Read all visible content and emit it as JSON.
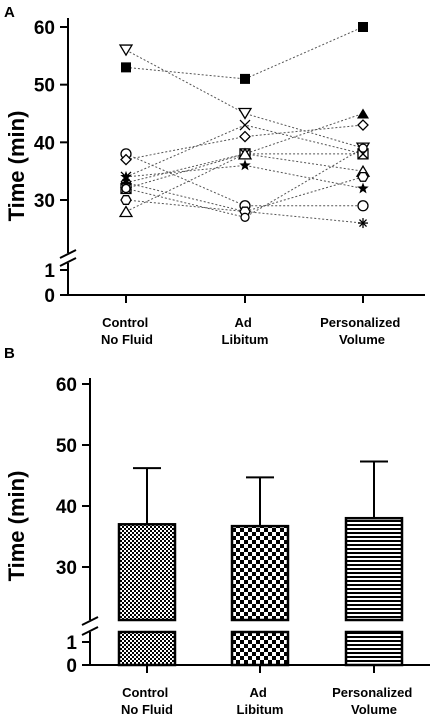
{
  "chart_data": [
    {
      "panel": "A",
      "type": "scatter",
      "ylabel": "Time (min)",
      "categories": [
        [
          "Control",
          "No Fluid"
        ],
        [
          "Ad",
          "Libitum"
        ],
        [
          "Personalized",
          "Volume"
        ]
      ],
      "yticks": [
        "60",
        "50",
        "40",
        "30",
        "1",
        "0"
      ],
      "ylim": [
        25,
        60
      ],
      "axis_break": true,
      "series": [
        {
          "marker": "square-filled",
          "values": [
            53,
            51,
            60
          ]
        },
        {
          "marker": "triangle-down-open",
          "values": [
            56,
            45,
            39
          ]
        },
        {
          "marker": "triangle-up-filled",
          "values": [
            33,
            38,
            45
          ]
        },
        {
          "marker": "circle-open",
          "values": [
            38,
            29,
            29
          ]
        },
        {
          "marker": "diamond-open",
          "values": [
            37,
            41,
            43
          ]
        },
        {
          "marker": "x-cross",
          "values": [
            34,
            43,
            38
          ]
        },
        {
          "marker": "star-filled",
          "values": [
            34,
            36,
            32
          ]
        },
        {
          "marker": "square-x",
          "values": [
            32,
            38,
            38
          ]
        },
        {
          "marker": "triangle-up-open",
          "values": [
            28,
            38,
            35
          ]
        },
        {
          "marker": "asterisk",
          "values": [
            33,
            28,
            26
          ]
        },
        {
          "marker": "hexagon-open",
          "values": [
            30,
            28,
            34
          ]
        },
        {
          "marker": "circle-open-small",
          "values": [
            32,
            27,
            39
          ]
        }
      ]
    },
    {
      "panel": "B",
      "type": "bar",
      "ylabel": "Time (min)",
      "categories": [
        [
          "Control",
          "No Fluid"
        ],
        [
          "Ad",
          "Libitum"
        ],
        [
          "Personalized",
          "Volume"
        ]
      ],
      "values": [
        37,
        36.7,
        38
      ],
      "error_upper": [
        46.2,
        44.7,
        47.3
      ],
      "patterns": [
        "fine-checker",
        "coarse-checker",
        "horizontal-stripes"
      ],
      "yticks": [
        "60",
        "50",
        "40",
        "30",
        "1",
        "0"
      ],
      "ylim": [
        25,
        60
      ],
      "axis_break": true
    }
  ]
}
